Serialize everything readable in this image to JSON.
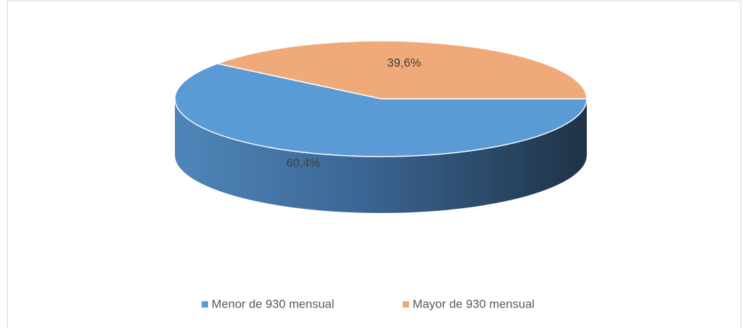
{
  "chart_data": {
    "type": "pie",
    "categories": [
      "Menor de 930 mensual",
      "Mayor de 930 mensual"
    ],
    "values": [
      60.4,
      39.6
    ],
    "value_labels": [
      "60,4%",
      "39,6%"
    ],
    "colors": [
      "#5b9bd5",
      "#f0aa7a"
    ],
    "legend": "bottom"
  }
}
